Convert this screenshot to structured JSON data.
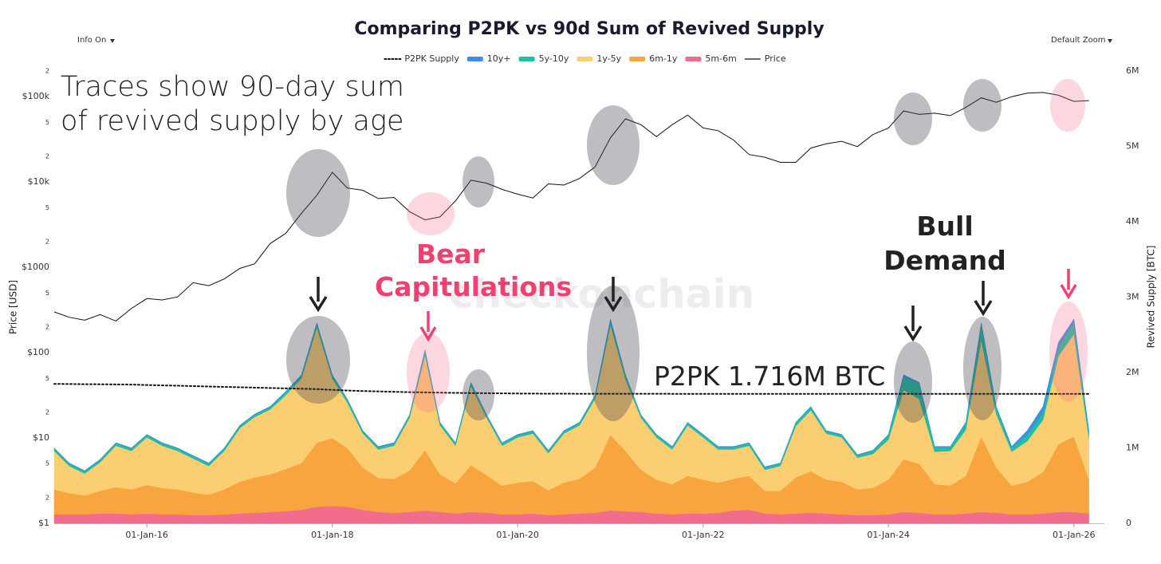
{
  "controls": {
    "info": "Info On",
    "zoom": "Default Zoom"
  },
  "chart_data": {
    "type": "line",
    "title": "Comparing P2PK vs 90d Sum of Revived Supply",
    "y_label": "Price [USD]",
    "y2_label": "Revived Supply [BTC]",
    "watermark": "checkonchain",
    "annotations": [
      "Traces show 90-day sum of revived supply by age",
      "Bear Capitulations",
      "Bull Demand",
      "P2PK 1.716M BTC"
    ],
    "log_y": true,
    "stacked": true,
    "grid": false,
    "xlim": [
      "2015-01-01",
      "2026-05-01"
    ],
    "xticks": [
      {
        "value": "2016-01-01",
        "label": "01-Jan-16"
      },
      {
        "value": "2018-01-01",
        "label": "01-Jan-18"
      },
      {
        "value": "2020-01-01",
        "label": "01-Jan-20"
      },
      {
        "value": "2022-01-01",
        "label": "01-Jan-22"
      },
      {
        "value": "2024-01-01",
        "label": "01-Jan-24"
      },
      {
        "value": "2026-01-01",
        "label": "01-Jan-26"
      }
    ],
    "ylim": [
      1,
      200000
    ],
    "yticks": [
      {
        "value": 1,
        "label": "$1"
      },
      2,
      5,
      {
        "value": 10,
        "label": "$10"
      },
      {
        "value": 20,
        "label": "2"
      },
      {
        "value": 50,
        "label": "5"
      },
      {
        "value": 100,
        "label": "$100"
      },
      {
        "value": 200,
        "label": "2"
      },
      {
        "value": 500,
        "label": "5"
      },
      {
        "value": 1000,
        "label": "$1000"
      },
      {
        "value": 2000,
        "label": "2"
      },
      {
        "value": 5000,
        "label": "5"
      },
      {
        "value": 10000,
        "label": "$10k"
      },
      {
        "value": 20000,
        "label": "2"
      },
      {
        "value": 50000,
        "label": "5"
      },
      {
        "value": 100000,
        "label": "$100k"
      },
      {
        "value": 200000,
        "label": "2"
      }
    ],
    "y2lim": [
      0,
      6000000
    ],
    "y2ticks": [
      0,
      {
        "value": 1000000,
        "label": "1M"
      },
      {
        "value": 2000000,
        "label": "2M"
      },
      {
        "value": 3000000,
        "label": "3M"
      },
      {
        "value": 4000000,
        "label": "4M"
      },
      {
        "value": 5000000,
        "label": "5M"
      },
      {
        "value": 6000000,
        "label": "6M"
      }
    ],
    "x": [
      "2015-01-01",
      "2015-03-01",
      "2015-05-01",
      "2015-07-01",
      "2015-09-01",
      "2015-11-01",
      "2016-01-01",
      "2016-03-01",
      "2016-05-01",
      "2016-07-01",
      "2016-09-01",
      "2016-11-01",
      "2017-01-01",
      "2017-03-01",
      "2017-05-01",
      "2017-07-01",
      "2017-09-01",
      "2017-11-01",
      "2018-01-01",
      "2018-03-01",
      "2018-05-01",
      "2018-07-01",
      "2018-09-01",
      "2018-11-01",
      "2019-01-01",
      "2019-03-01",
      "2019-05-01",
      "2019-07-01",
      "2019-09-01",
      "2019-11-01",
      "2020-01-01",
      "2020-03-01",
      "2020-05-01",
      "2020-07-01",
      "2020-09-01",
      "2020-11-01",
      "2021-01-01",
      "2021-03-01",
      "2021-05-01",
      "2021-07-01",
      "2021-09-01",
      "2021-11-01",
      "2022-01-01",
      "2022-03-01",
      "2022-05-01",
      "2022-07-01",
      "2022-09-01",
      "2022-11-01",
      "2023-01-01",
      "2023-03-01",
      "2023-05-01",
      "2023-07-01",
      "2023-09-01",
      "2023-11-01",
      "2024-01-01",
      "2024-03-01",
      "2024-05-01",
      "2024-07-01",
      "2024-09-01",
      "2024-11-01",
      "2025-01-01",
      "2025-03-01",
      "2025-05-01",
      "2025-07-01",
      "2025-09-01",
      "2025-11-01",
      "2026-01-01",
      "2026-03-01"
    ],
    "series": [
      {
        "name": "P2PK Supply",
        "type": "line",
        "axis": "y2",
        "color": "#111111",
        "dash": "dotted",
        "values": [
          1850000,
          1848000,
          1846000,
          1844000,
          1842000,
          1840000,
          1835000,
          1830000,
          1825000,
          1820000,
          1815000,
          1810000,
          1805000,
          1800000,
          1795000,
          1790000,
          1785000,
          1780000,
          1770000,
          1762000,
          1755000,
          1750000,
          1745000,
          1740000,
          1736000,
          1733000,
          1730000,
          1728000,
          1726000,
          1724000,
          1722000,
          1721000,
          1720000,
          1720000,
          1719000,
          1719000,
          1718000,
          1718000,
          1718000,
          1718000,
          1717000,
          1717000,
          1717000,
          1717000,
          1717000,
          1717000,
          1717000,
          1717000,
          1717000,
          1717000,
          1717000,
          1717000,
          1717000,
          1717000,
          1716000,
          1716000,
          1716000,
          1716000,
          1716000,
          1716000,
          1716000,
          1716000,
          1716000,
          1716000,
          1716000,
          1716000,
          1716000,
          1716000
        ]
      },
      {
        "name": "10y+",
        "type": "area",
        "axis": "y2",
        "color": "#3d8ee8",
        "values": [
          10000,
          10000,
          10000,
          10000,
          10000,
          10000,
          10000,
          10000,
          10000,
          10000,
          10000,
          10000,
          10000,
          10000,
          10000,
          10000,
          10000,
          10000,
          10000,
          10000,
          10000,
          10000,
          10000,
          10000,
          10000,
          10000,
          10000,
          10000,
          10000,
          10000,
          10000,
          10000,
          10000,
          10000,
          10000,
          10000,
          20000,
          10000,
          10000,
          10000,
          10000,
          10000,
          10000,
          10000,
          10000,
          10000,
          10000,
          10000,
          10000,
          10000,
          10000,
          10000,
          10000,
          10000,
          10000,
          20000,
          20000,
          10000,
          10000,
          20000,
          30000,
          20000,
          20000,
          60000,
          80000,
          60000,
          50000,
          20000
        ]
      },
      {
        "name": "5y-10y",
        "type": "area",
        "axis": "y2",
        "color": "#1ec0a0",
        "values": [
          30000,
          30000,
          30000,
          30000,
          30000,
          30000,
          30000,
          30000,
          30000,
          30000,
          30000,
          30000,
          30000,
          30000,
          30000,
          40000,
          40000,
          50000,
          40000,
          40000,
          30000,
          30000,
          30000,
          30000,
          60000,
          30000,
          30000,
          40000,
          30000,
          30000,
          30000,
          30000,
          30000,
          30000,
          30000,
          40000,
          60000,
          50000,
          30000,
          30000,
          30000,
          30000,
          30000,
          30000,
          30000,
          30000,
          30000,
          30000,
          40000,
          40000,
          30000,
          30000,
          30000,
          40000,
          60000,
          180000,
          200000,
          60000,
          50000,
          80000,
          200000,
          80000,
          50000,
          80000,
          100000,
          120000,
          150000,
          80000
        ]
      },
      {
        "name": "1y-5y",
        "type": "area",
        "axis": "y2",
        "color": "#fcce72",
        "values": [
          510000,
          360000,
          290000,
          380000,
          550000,
          510000,
          630000,
          560000,
          510000,
          450000,
          380000,
          510000,
          710000,
          800000,
          860000,
          980000,
          1120000,
          1530000,
          790000,
          600000,
          450000,
          380000,
          440000,
          700000,
          1260000,
          650000,
          500000,
          1050000,
          760000,
          530000,
          600000,
          630000,
          490000,
          650000,
          710000,
          910000,
          1460000,
          950000,
          690000,
          560000,
          460000,
          670000,
          560000,
          440000,
          390000,
          400000,
          280000,
          330000,
          680000,
          810000,
          610000,
          590000,
          420000,
          450000,
          530000,
          920000,
          860000,
          430000,
          460000,
          610000,
          1280000,
          710000,
          450000,
          540000,
          690000,
          1170000,
          1360000,
          550000
        ]
      },
      {
        "name": "6m-1y",
        "type": "area",
        "axis": "y2",
        "color": "#f9a53f",
        "values": [
          330000,
          280000,
          250000,
          300000,
          350000,
          330000,
          380000,
          350000,
          330000,
          300000,
          270000,
          330000,
          420000,
          470000,
          500000,
          560000,
          620000,
          850000,
          900000,
          780000,
          560000,
          450000,
          450000,
          550000,
          800000,
          500000,
          400000,
          620000,
          500000,
          380000,
          420000,
          430000,
          330000,
          420000,
          460000,
          600000,
          1000000,
          800000,
          560000,
          450000,
          400000,
          500000,
          450000,
          400000,
          420000,
          450000,
          300000,
          310000,
          480000,
          550000,
          450000,
          430000,
          340000,
          360000,
          460000,
          700000,
          650000,
          400000,
          380000,
          500000,
          1000000,
          600000,
          380000,
          430000,
          550000,
          900000,
          1000000,
          450000
        ]
      },
      {
        "name": "5m-6m",
        "type": "area",
        "axis": "y2",
        "color": "#f26d8d",
        "values": [
          120000,
          120000,
          120000,
          130000,
          130000,
          120000,
          130000,
          120000,
          120000,
          110000,
          110000,
          120000,
          130000,
          140000,
          150000,
          160000,
          180000,
          220000,
          230000,
          220000,
          180000,
          150000,
          140000,
          150000,
          170000,
          150000,
          130000,
          150000,
          140000,
          120000,
          120000,
          130000,
          110000,
          120000,
          130000,
          140000,
          170000,
          160000,
          150000,
          130000,
          120000,
          130000,
          130000,
          140000,
          170000,
          180000,
          130000,
          120000,
          130000,
          140000,
          130000,
          120000,
          110000,
          110000,
          120000,
          150000,
          140000,
          120000,
          120000,
          130000,
          150000,
          140000,
          120000,
          120000,
          130000,
          150000,
          150000,
          130000
        ]
      },
      {
        "name": "Price",
        "type": "line",
        "axis": "y",
        "color": "#111111",
        "values": [
          300,
          260,
          240,
          280,
          235,
          330,
          430,
          415,
          450,
          660,
          610,
          730,
          970,
          1100,
          1900,
          2500,
          4300,
          7000,
          13000,
          8500,
          8000,
          6400,
          6600,
          4500,
          3600,
          3900,
          6000,
          10500,
          9700,
          8200,
          7200,
          6500,
          9500,
          9200,
          11000,
          15000,
          33000,
          55000,
          47000,
          34000,
          47000,
          61000,
          43000,
          40000,
          31000,
          21000,
          19500,
          17000,
          17000,
          25000,
          28000,
          30000,
          26000,
          36000,
          43000,
          68000,
          62000,
          64000,
          60000,
          75000,
          97000,
          86000,
          100000,
          110000,
          112000,
          104000,
          88000,
          90000
        ]
      }
    ]
  }
}
